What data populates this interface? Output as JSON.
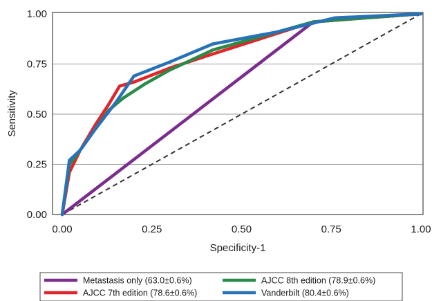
{
  "chart_data": {
    "type": "line",
    "xlabel": "Specificity-1",
    "ylabel": "Sensitivity",
    "xlim": [
      0,
      1
    ],
    "ylim": [
      0,
      1
    ],
    "x_ticks": [
      "0.00",
      "0.25",
      "0.50",
      "0.75",
      "1.00"
    ],
    "y_ticks": [
      "0.00",
      "0.25",
      "0.50",
      "0.75",
      "1.00"
    ],
    "grid": "horizontal",
    "legend_position": "bottom",
    "reference_line": {
      "style": "dashed",
      "color": "#333333",
      "points": [
        [
          0,
          0
        ],
        [
          1,
          1
        ]
      ]
    },
    "series": [
      {
        "name": "Metastasis only (63.0±0.6%)",
        "color": "#7b2d8e",
        "points": [
          [
            0,
            0
          ],
          [
            0.7,
            0.96
          ],
          [
            1,
            1
          ]
        ]
      },
      {
        "name": "AJCC 7th edition (78.6±0.6%)",
        "color": "#e0262b",
        "points": [
          [
            0,
            0
          ],
          [
            0.02,
            0.21
          ],
          [
            0.05,
            0.32
          ],
          [
            0.09,
            0.44
          ],
          [
            0.13,
            0.55
          ],
          [
            0.16,
            0.64
          ],
          [
            0.2,
            0.66
          ],
          [
            0.3,
            0.73
          ],
          [
            0.42,
            0.8
          ],
          [
            0.7,
            0.96
          ],
          [
            0.77,
            0.97
          ],
          [
            1,
            1
          ]
        ]
      },
      {
        "name": "AJCC 8th edition (78.9±0.6%)",
        "color": "#2a8a47",
        "points": [
          [
            0,
            0
          ],
          [
            0.02,
            0.25
          ],
          [
            0.05,
            0.32
          ],
          [
            0.09,
            0.42
          ],
          [
            0.13,
            0.52
          ],
          [
            0.17,
            0.58
          ],
          [
            0.23,
            0.65
          ],
          [
            0.3,
            0.72
          ],
          [
            0.42,
            0.82
          ],
          [
            0.7,
            0.96
          ],
          [
            0.77,
            0.97
          ],
          [
            1,
            1
          ]
        ]
      },
      {
        "name": "Vanderbilt (80.4±0.6%)",
        "color": "#2872b8",
        "points": [
          [
            0,
            0
          ],
          [
            0.02,
            0.27
          ],
          [
            0.05,
            0.32
          ],
          [
            0.09,
            0.42
          ],
          [
            0.15,
            0.56
          ],
          [
            0.2,
            0.69
          ],
          [
            0.3,
            0.76
          ],
          [
            0.42,
            0.85
          ],
          [
            0.6,
            0.91
          ],
          [
            0.76,
            0.98
          ],
          [
            1,
            1
          ]
        ]
      }
    ]
  }
}
